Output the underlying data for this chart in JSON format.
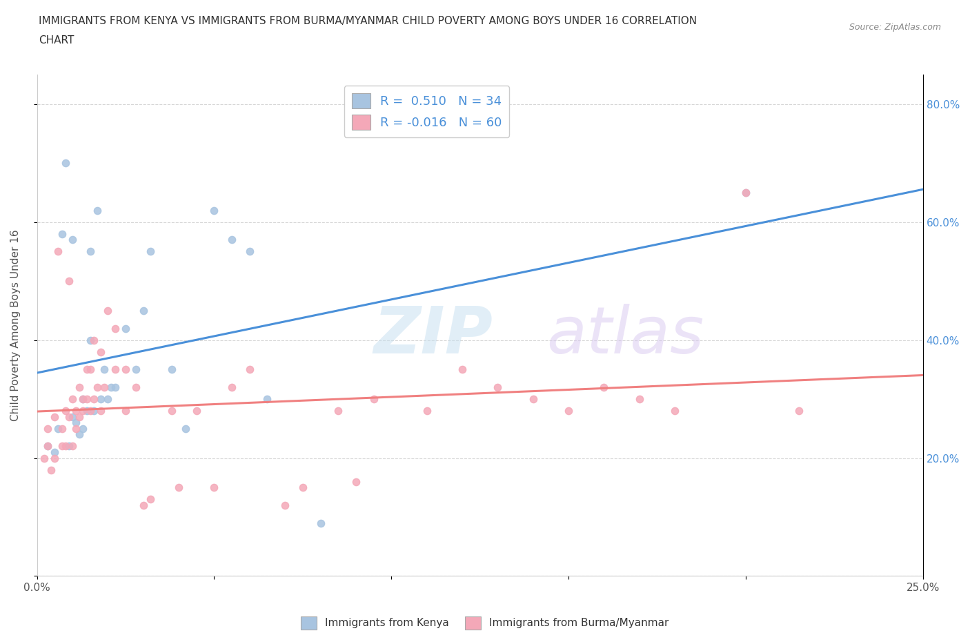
{
  "title_line1": "IMMIGRANTS FROM KENYA VS IMMIGRANTS FROM BURMA/MYANMAR CHILD POVERTY AMONG BOYS UNDER 16 CORRELATION",
  "title_line2": "CHART",
  "source": "Source: ZipAtlas.com",
  "ylabel": "Child Poverty Among Boys Under 16",
  "xlim": [
    0.0,
    0.25
  ],
  "ylim": [
    0.0,
    0.85
  ],
  "xticks": [
    0.0,
    0.05,
    0.1,
    0.15,
    0.2,
    0.25
  ],
  "yticks": [
    0.0,
    0.2,
    0.4,
    0.6,
    0.8
  ],
  "ytick_labels": [
    "",
    "20.0%",
    "40.0%",
    "60.0%",
    "80.0%"
  ],
  "xtick_labels": [
    "0.0%",
    "",
    "",
    "",
    "",
    "25.0%"
  ],
  "kenya_color": "#a8c4e0",
  "burma_color": "#f4a8b8",
  "kenya_line_color": "#4a90d9",
  "burma_line_color": "#f08080",
  "legend_kenya_label": "R =  0.510   N = 34",
  "legend_burma_label": "R = -0.016   N = 60",
  "watermark": "ZIPatlas",
  "kenya_scatter_x": [
    0.003,
    0.005,
    0.006,
    0.007,
    0.008,
    0.009,
    0.01,
    0.01,
    0.011,
    0.012,
    0.013,
    0.013,
    0.014,
    0.015,
    0.015,
    0.016,
    0.017,
    0.018,
    0.019,
    0.02,
    0.021,
    0.022,
    0.025,
    0.028,
    0.03,
    0.032,
    0.038,
    0.042,
    0.05,
    0.055,
    0.06,
    0.065,
    0.08,
    0.2
  ],
  "kenya_scatter_y": [
    0.22,
    0.21,
    0.25,
    0.58,
    0.7,
    0.22,
    0.57,
    0.27,
    0.26,
    0.24,
    0.3,
    0.25,
    0.28,
    0.4,
    0.55,
    0.28,
    0.62,
    0.3,
    0.35,
    0.3,
    0.32,
    0.32,
    0.42,
    0.35,
    0.45,
    0.55,
    0.35,
    0.25,
    0.62,
    0.57,
    0.55,
    0.3,
    0.09,
    0.65
  ],
  "burma_scatter_x": [
    0.002,
    0.003,
    0.003,
    0.004,
    0.005,
    0.005,
    0.006,
    0.007,
    0.007,
    0.008,
    0.008,
    0.009,
    0.009,
    0.01,
    0.01,
    0.011,
    0.011,
    0.012,
    0.012,
    0.013,
    0.013,
    0.014,
    0.014,
    0.015,
    0.015,
    0.016,
    0.016,
    0.017,
    0.018,
    0.018,
    0.019,
    0.02,
    0.022,
    0.022,
    0.025,
    0.025,
    0.028,
    0.03,
    0.032,
    0.038,
    0.04,
    0.045,
    0.05,
    0.055,
    0.06,
    0.07,
    0.075,
    0.085,
    0.09,
    0.095,
    0.11,
    0.12,
    0.13,
    0.14,
    0.15,
    0.16,
    0.17,
    0.18,
    0.2,
    0.215
  ],
  "burma_scatter_y": [
    0.2,
    0.22,
    0.25,
    0.18,
    0.2,
    0.27,
    0.55,
    0.22,
    0.25,
    0.22,
    0.28,
    0.5,
    0.27,
    0.22,
    0.3,
    0.28,
    0.25,
    0.32,
    0.27,
    0.28,
    0.3,
    0.35,
    0.3,
    0.28,
    0.35,
    0.3,
    0.4,
    0.32,
    0.28,
    0.38,
    0.32,
    0.45,
    0.35,
    0.42,
    0.28,
    0.35,
    0.32,
    0.12,
    0.13,
    0.28,
    0.15,
    0.28,
    0.15,
    0.32,
    0.35,
    0.12,
    0.15,
    0.28,
    0.16,
    0.3,
    0.28,
    0.35,
    0.32,
    0.3,
    0.28,
    0.32,
    0.3,
    0.28,
    0.65,
    0.28
  ]
}
